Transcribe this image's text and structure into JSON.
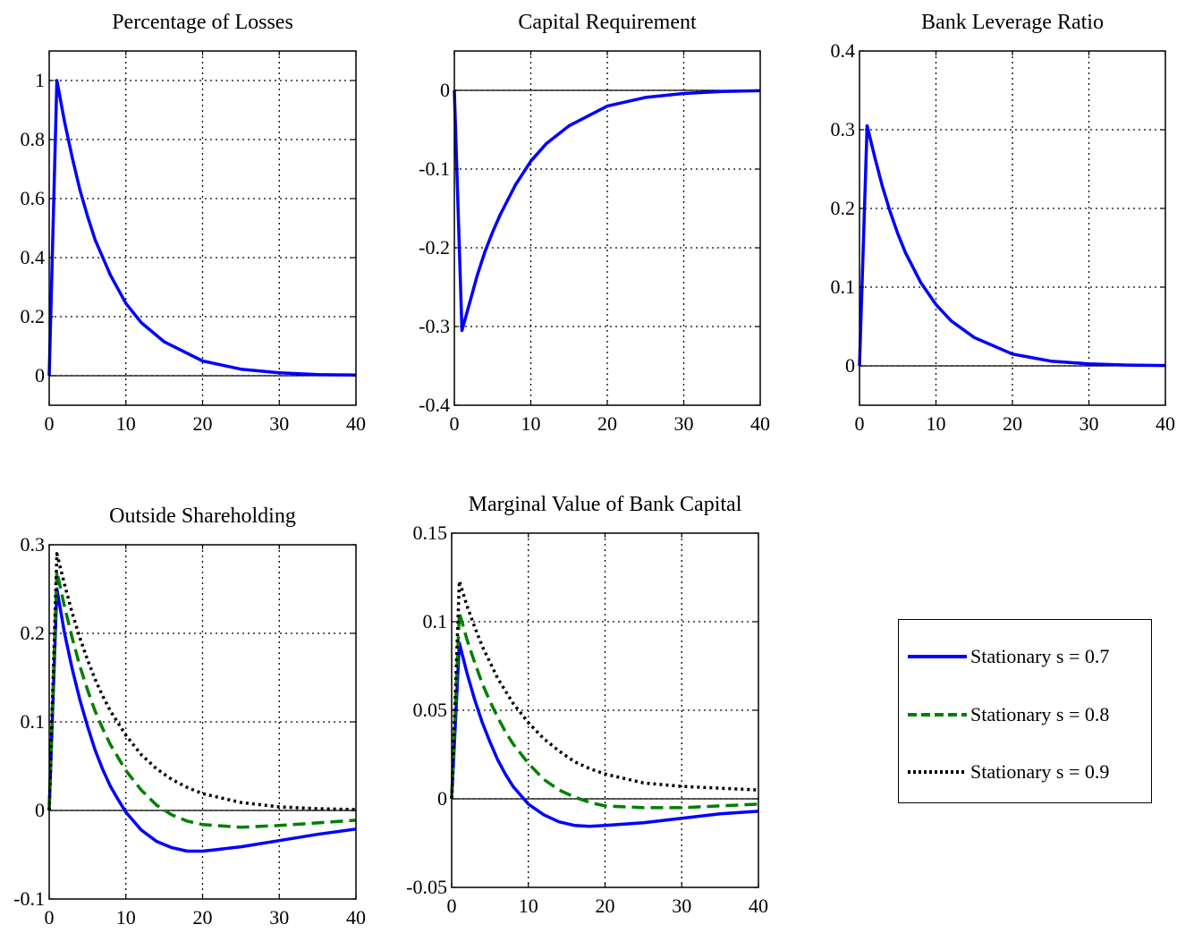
{
  "chart_data": [
    {
      "type": "line",
      "title": "Percentage of Losses",
      "xlim": [
        0,
        40
      ],
      "ylim": [
        -0.1,
        1.1
      ],
      "xticks": [
        0,
        10,
        20,
        30,
        40
      ],
      "xtick_labels": [
        "0",
        "10",
        "20",
        "30",
        "40"
      ],
      "yticks": [
        0,
        0.2,
        0.4,
        0.6,
        0.8,
        1
      ],
      "ytick_labels": [
        "0",
        "0.2",
        "0.4",
        "0.6",
        "0.8",
        "1"
      ],
      "grid": true,
      "series": [
        {
          "color": "#0000ff",
          "dash": "solid",
          "x": [
            0,
            1,
            2,
            3,
            4,
            5,
            6,
            8,
            10,
            12,
            15,
            20,
            25,
            30,
            35,
            40
          ],
          "y": [
            0,
            1.0,
            0.86,
            0.74,
            0.63,
            0.54,
            0.46,
            0.34,
            0.245,
            0.18,
            0.115,
            0.05,
            0.022,
            0.01,
            0.004,
            0.002
          ]
        }
      ]
    },
    {
      "type": "line",
      "title": "Capital Requirement",
      "xlim": [
        0,
        40
      ],
      "ylim": [
        -0.4,
        0.05
      ],
      "xticks": [
        0,
        10,
        20,
        30,
        40
      ],
      "xtick_labels": [
        "0",
        "10",
        "20",
        "30",
        "40"
      ],
      "yticks": [
        -0.4,
        -0.3,
        -0.2,
        -0.1,
        0
      ],
      "ytick_labels": [
        "-0.4",
        "-0.3",
        "-0.2",
        "-0.1",
        "0"
      ],
      "grid": true,
      "series": [
        {
          "color": "#0000ff",
          "dash": "solid",
          "x": [
            0,
            1,
            2,
            3,
            4,
            5,
            6,
            8,
            10,
            12,
            15,
            20,
            25,
            30,
            35,
            40
          ],
          "y": [
            0,
            -0.305,
            -0.27,
            -0.235,
            -0.205,
            -0.18,
            -0.158,
            -0.12,
            -0.09,
            -0.068,
            -0.045,
            -0.02,
            -0.009,
            -0.004,
            -0.0015,
            -0.0005
          ]
        }
      ]
    },
    {
      "type": "line",
      "title": "Bank Leverage Ratio",
      "xlim": [
        0,
        40
      ],
      "ylim": [
        -0.05,
        0.4
      ],
      "xticks": [
        0,
        10,
        20,
        30,
        40
      ],
      "xtick_labels": [
        "0",
        "10",
        "20",
        "30",
        "40"
      ],
      "yticks": [
        0,
        0.1,
        0.2,
        0.3,
        0.4
      ],
      "ytick_labels": [
        "0",
        "0.1",
        "0.2",
        "0.3",
        "0.4"
      ],
      "grid": true,
      "series": [
        {
          "color": "#0000ff",
          "dash": "solid",
          "x": [
            0,
            1,
            2,
            3,
            4,
            5,
            6,
            8,
            10,
            12,
            15,
            20,
            25,
            30,
            35,
            40
          ],
          "y": [
            0,
            0.305,
            0.265,
            0.228,
            0.196,
            0.168,
            0.144,
            0.106,
            0.078,
            0.057,
            0.036,
            0.015,
            0.006,
            0.0025,
            0.001,
            0.0004
          ]
        }
      ]
    },
    {
      "type": "line",
      "title": "Outside Shareholding",
      "xlim": [
        0,
        40
      ],
      "ylim": [
        -0.1,
        0.3
      ],
      "xticks": [
        0,
        10,
        20,
        30,
        40
      ],
      "xtick_labels": [
        "0",
        "10",
        "20",
        "30",
        "40"
      ],
      "yticks": [
        -0.1,
        0,
        0.1,
        0.2,
        0.3
      ],
      "ytick_labels": [
        "-0.1",
        "0",
        "0.1",
        "0.2",
        "0.3"
      ],
      "grid": true,
      "series": [
        {
          "name": "Stationary s = 0.7",
          "color": "#0000ff",
          "dash": "solid",
          "x": [
            0,
            1,
            2,
            3,
            4,
            5,
            6,
            7,
            8,
            9,
            10,
            12,
            14,
            16,
            18,
            20,
            22,
            25,
            30,
            35,
            40
          ],
          "y": [
            0,
            0.25,
            0.2,
            0.16,
            0.125,
            0.095,
            0.068,
            0.046,
            0.027,
            0.012,
            -0.002,
            -0.022,
            -0.035,
            -0.042,
            -0.046,
            -0.046,
            -0.044,
            -0.041,
            -0.034,
            -0.027,
            -0.021
          ]
        },
        {
          "name": "Stationary s = 0.8",
          "color": "#007f00",
          "dash": "dashed",
          "x": [
            0,
            1,
            2,
            3,
            4,
            5,
            6,
            7,
            8,
            10,
            12,
            14,
            16,
            18,
            20,
            25,
            30,
            35,
            40
          ],
          "y": [
            0,
            0.27,
            0.23,
            0.195,
            0.163,
            0.136,
            0.112,
            0.092,
            0.074,
            0.045,
            0.023,
            0.006,
            -0.005,
            -0.012,
            -0.016,
            -0.019,
            -0.017,
            -0.014,
            -0.011
          ]
        },
        {
          "name": "Stationary s = 0.9",
          "color": "#000000",
          "dash": "dotted",
          "x": [
            0,
            1,
            2,
            3,
            4,
            5,
            6,
            7,
            8,
            10,
            12,
            14,
            16,
            18,
            20,
            25,
            30,
            35,
            40
          ],
          "y": [
            0,
            0.29,
            0.255,
            0.223,
            0.195,
            0.17,
            0.148,
            0.129,
            0.112,
            0.085,
            0.063,
            0.047,
            0.035,
            0.026,
            0.019,
            0.009,
            0.004,
            0.002,
            0.001
          ]
        }
      ]
    },
    {
      "type": "line",
      "title": "Marginal Value of Bank Capital",
      "xlim": [
        0,
        40
      ],
      "ylim": [
        -0.05,
        0.15
      ],
      "xticks": [
        0,
        10,
        20,
        30,
        40
      ],
      "xtick_labels": [
        "0",
        "10",
        "20",
        "30",
        "40"
      ],
      "yticks": [
        -0.05,
        0,
        0.05,
        0.1,
        0.15
      ],
      "ytick_labels": [
        "-0.05",
        "0",
        "0.05",
        "0.1",
        "0.15"
      ],
      "grid": true,
      "series": [
        {
          "name": "Stationary s = 0.7",
          "color": "#0000ff",
          "dash": "solid",
          "x": [
            0,
            1,
            2,
            3,
            4,
            5,
            6,
            7,
            8,
            9,
            10,
            12,
            14,
            16,
            18,
            20,
            25,
            30,
            35,
            40
          ],
          "y": [
            0,
            0.088,
            0.071,
            0.056,
            0.043,
            0.032,
            0.022,
            0.014,
            0.007,
            0.002,
            -0.003,
            -0.009,
            -0.013,
            -0.015,
            -0.0155,
            -0.015,
            -0.0135,
            -0.011,
            -0.0085,
            -0.007
          ]
        },
        {
          "name": "Stationary s = 0.8",
          "color": "#007f00",
          "dash": "dashed",
          "x": [
            0,
            1,
            2,
            3,
            4,
            5,
            6,
            7,
            8,
            10,
            12,
            14,
            16,
            18,
            20,
            25,
            30,
            35,
            40
          ],
          "y": [
            0,
            0.105,
            0.09,
            0.077,
            0.065,
            0.055,
            0.046,
            0.038,
            0.031,
            0.02,
            0.011,
            0.005,
            0.001,
            -0.002,
            -0.004,
            -0.005,
            -0.005,
            -0.004,
            -0.003
          ]
        },
        {
          "name": "Stationary s = 0.9",
          "color": "#000000",
          "dash": "dotted",
          "x": [
            0,
            1,
            2,
            3,
            4,
            5,
            6,
            7,
            8,
            10,
            12,
            14,
            16,
            18,
            20,
            25,
            30,
            35,
            40
          ],
          "y": [
            0,
            0.123,
            0.109,
            0.097,
            0.086,
            0.077,
            0.068,
            0.061,
            0.054,
            0.043,
            0.034,
            0.027,
            0.021,
            0.017,
            0.014,
            0.009,
            0.007,
            0.006,
            0.005
          ]
        }
      ]
    }
  ],
  "legend": {
    "entries": [
      {
        "label": "Stationary s = 0.7",
        "color": "#0000ff",
        "dash": "solid"
      },
      {
        "label": "Stationary s = 0.8",
        "color": "#007f00",
        "dash": "dashed"
      },
      {
        "label": "Stationary s = 0.9",
        "color": "#000000",
        "dash": "dotted"
      }
    ]
  }
}
